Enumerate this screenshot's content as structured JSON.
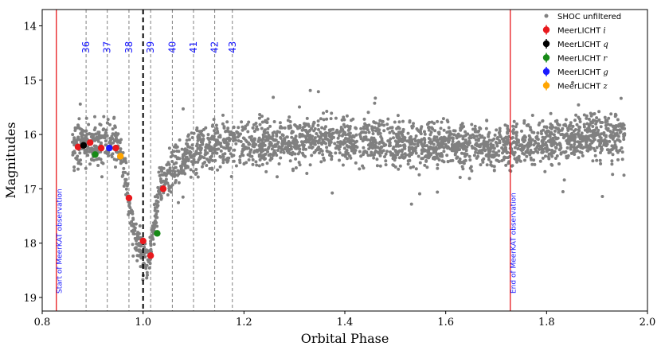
{
  "chart_data": {
    "type": "scatter",
    "xlabel": "Orbital Phase",
    "ylabel": "Magnitudes",
    "xlim": [
      0.8,
      2.0
    ],
    "ylim": [
      19.25,
      13.7
    ],
    "y_inverted": true,
    "grid": false,
    "legend_placement": "top-right",
    "x_ticks": [
      "0.8",
      "1.0",
      "1.2",
      "1.4",
      "1.6",
      "1.8",
      "2.0"
    ],
    "x_tick_values": [
      0.8,
      1.0,
      1.2,
      1.4,
      1.6,
      1.8,
      2.0
    ],
    "y_ticks": [
      "14",
      "15",
      "16",
      "17",
      "18",
      "19"
    ],
    "y_tick_values": [
      14,
      15,
      16,
      17,
      18,
      19
    ],
    "reference_lines": [
      {
        "x": 0.828,
        "color": "#e8191d",
        "label": "Start of MeerKAT observation"
      },
      {
        "x": 1.728,
        "color": "#e8191d",
        "label": "End of MeerKAT observation"
      }
    ],
    "midpoint_line": {
      "x": 1.0,
      "color": "#000000"
    },
    "eclipse_markers": [
      {
        "x": 0.887,
        "label": "36"
      },
      {
        "x": 0.929,
        "label": "37"
      },
      {
        "x": 0.972,
        "label": "38"
      },
      {
        "x": 1.015,
        "label": "39"
      },
      {
        "x": 1.058,
        "label": "40"
      },
      {
        "x": 1.1,
        "label": "41"
      },
      {
        "x": 1.142,
        "label": "42"
      },
      {
        "x": 1.177,
        "label": "43"
      }
    ],
    "background_series": {
      "name": "SHOC unfiltered",
      "color": "#808080",
      "x_range": [
        0.86,
        1.955
      ],
      "profile": [
        {
          "x": 0.86,
          "y": 16.25
        },
        {
          "x": 0.88,
          "y": 16.1
        },
        {
          "x": 0.9,
          "y": 16.2
        },
        {
          "x": 0.93,
          "y": 16.1
        },
        {
          "x": 0.955,
          "y": 16.25
        },
        {
          "x": 0.965,
          "y": 16.8
        },
        {
          "x": 0.975,
          "y": 17.5
        },
        {
          "x": 0.985,
          "y": 17.9
        },
        {
          "x": 1.0,
          "y": 18.2
        },
        {
          "x": 1.01,
          "y": 18.4
        },
        {
          "x": 1.02,
          "y": 17.8
        },
        {
          "x": 1.03,
          "y": 17.0
        },
        {
          "x": 1.045,
          "y": 16.8
        },
        {
          "x": 1.07,
          "y": 16.5
        },
        {
          "x": 1.1,
          "y": 16.3
        },
        {
          "x": 1.15,
          "y": 16.2
        },
        {
          "x": 1.25,
          "y": 16.15
        },
        {
          "x": 1.4,
          "y": 16.1
        },
        {
          "x": 1.55,
          "y": 16.2
        },
        {
          "x": 1.7,
          "y": 16.25
        },
        {
          "x": 1.85,
          "y": 16.1
        },
        {
          "x": 1.955,
          "y": 16.0
        }
      ]
    },
    "series": [
      {
        "name": "MeerLICHT",
        "filter": "i",
        "color": "#e8191d",
        "points": [
          [
            0.871,
            16.23
          ],
          [
            0.895,
            16.15
          ],
          [
            0.917,
            16.25
          ],
          [
            0.946,
            16.25
          ],
          [
            0.972,
            17.17
          ],
          [
            1.0,
            17.96
          ],
          [
            1.015,
            18.23
          ],
          [
            1.04,
            17.0
          ]
        ]
      },
      {
        "name": "MeerLICHT",
        "filter": "q",
        "color": "#000000",
        "points": [
          [
            0.882,
            16.2
          ]
        ]
      },
      {
        "name": "MeerLICHT",
        "filter": "r",
        "color": "#178a17",
        "points": [
          [
            0.905,
            16.37
          ],
          [
            1.028,
            17.82
          ]
        ]
      },
      {
        "name": "MeerLICHT",
        "filter": "g",
        "color": "#1a1aff",
        "points": [
          [
            0.933,
            16.25
          ]
        ]
      },
      {
        "name": "MeerLICHT",
        "filter": "z",
        "color": "#ffa500",
        "points": [
          [
            0.955,
            16.4
          ]
        ]
      }
    ]
  }
}
